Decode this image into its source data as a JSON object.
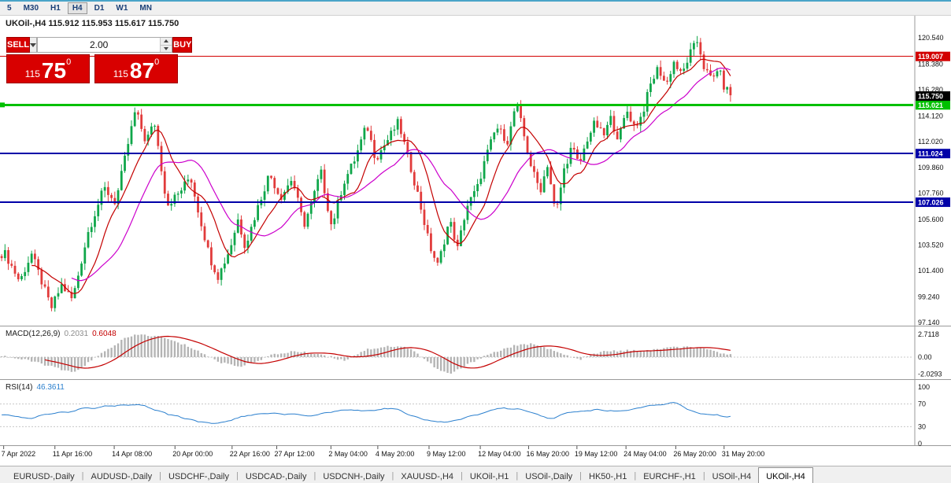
{
  "toolbar": {
    "items": [
      {
        "label": "5",
        "active": false
      },
      {
        "label": "M30",
        "active": false
      },
      {
        "label": "H1",
        "active": false
      },
      {
        "label": "H4",
        "active": true
      },
      {
        "label": "D1",
        "active": false
      },
      {
        "label": "W1",
        "active": false
      },
      {
        "label": "MN",
        "active": false
      }
    ]
  },
  "chart_header": {
    "text": "UKOil-,H4 115.912 115.953 115.617 115.750"
  },
  "trade_panel": {
    "sell_label": "SELL",
    "buy_label": "BUY",
    "volume": "2.00",
    "sell_price": {
      "small": "115",
      "big": "75",
      "sup": "0"
    },
    "buy_price": {
      "small": "115",
      "big": "87",
      "sup": "0"
    }
  },
  "chart_data": {
    "type": "candlestick",
    "symbol": "UKOil-",
    "timeframe": "H4",
    "current_bar": {
      "open": 115.912,
      "high": 115.953,
      "low": 115.617,
      "close": 115.75
    },
    "y_axis": {
      "range": [
        96.88,
        122.35
      ],
      "ticks": [
        {
          "v": 120.54,
          "label": "120.540"
        },
        {
          "v": 118.38,
          "label": "118.380"
        },
        {
          "v": 116.28,
          "label": "116.280"
        },
        {
          "v": 114.12,
          "label": "114.120"
        },
        {
          "v": 112.02,
          "label": "112.020"
        },
        {
          "v": 109.86,
          "label": "109.860"
        },
        {
          "v": 107.76,
          "label": "107.760"
        },
        {
          "v": 105.6,
          "label": "105.600"
        },
        {
          "v": 103.52,
          "label": "103.520"
        },
        {
          "v": 101.4,
          "label": "101.400"
        },
        {
          "v": 99.24,
          "label": "99.240"
        },
        {
          "v": 97.14,
          "label": "97.140"
        }
      ]
    },
    "price_levels": [
      {
        "v": 119.007,
        "label": "119.007",
        "color": "#d20000",
        "width": 1,
        "left_marker": false
      },
      {
        "v": 115.021,
        "label": "115.021",
        "color": "#00c000",
        "width": 3,
        "left_marker": true
      },
      {
        "v": 111.024,
        "label": "111.024",
        "color": "#0000a8",
        "width": 2,
        "left_marker": false
      },
      {
        "v": 107.026,
        "label": "107.026",
        "color": "#0000a8",
        "width": 2,
        "left_marker": false
      }
    ],
    "current_price_badge": {
      "v": 115.75,
      "label": "115.750",
      "color": "#000000"
    },
    "x_axis": {
      "labels": [
        {
          "t": 0.005,
          "label": "7 Apr 2022"
        },
        {
          "t": 0.075,
          "label": "11 Apr 16:00"
        },
        {
          "t": 0.156,
          "label": "14 Apr 08:00"
        },
        {
          "t": 0.239,
          "label": "20 Apr 00:00"
        },
        {
          "t": 0.317,
          "label": "22 Apr 16:00"
        },
        {
          "t": 0.378,
          "label": "27 Apr 12:00"
        },
        {
          "t": 0.452,
          "label": "2 May 04:00"
        },
        {
          "t": 0.516,
          "label": "4 May 20:00"
        },
        {
          "t": 0.586,
          "label": "9 May 12:00"
        },
        {
          "t": 0.656,
          "label": "12 May 04:00"
        },
        {
          "t": 0.722,
          "label": "16 May 20:00"
        },
        {
          "t": 0.788,
          "label": "19 May 12:00"
        },
        {
          "t": 0.855,
          "label": "24 May 04:00"
        },
        {
          "t": 0.923,
          "label": "26 May 20:00"
        },
        {
          "t": 0.989,
          "label": "31 May 20:00"
        }
      ]
    },
    "price_path": [
      [
        0.0,
        102.6
      ],
      [
        0.005,
        103.0
      ],
      [
        0.027,
        100.5
      ],
      [
        0.043,
        102.8
      ],
      [
        0.07,
        98.3
      ],
      [
        0.084,
        100.2
      ],
      [
        0.099,
        99.0
      ],
      [
        0.12,
        104.5
      ],
      [
        0.142,
        108.2
      ],
      [
        0.158,
        107.0
      ],
      [
        0.172,
        111.0
      ],
      [
        0.185,
        114.6
      ],
      [
        0.199,
        112.0
      ],
      [
        0.211,
        113.6
      ],
      [
        0.228,
        106.8
      ],
      [
        0.245,
        107.8
      ],
      [
        0.26,
        109.2
      ],
      [
        0.272,
        106.0
      ],
      [
        0.287,
        102.4
      ],
      [
        0.298,
        100.9
      ],
      [
        0.314,
        103.2
      ],
      [
        0.325,
        105.6
      ],
      [
        0.335,
        103.4
      ],
      [
        0.352,
        106.6
      ],
      [
        0.368,
        109.4
      ],
      [
        0.383,
        107.4
      ],
      [
        0.399,
        109.0
      ],
      [
        0.415,
        105.1
      ],
      [
        0.427,
        107.2
      ],
      [
        0.438,
        109.6
      ],
      [
        0.453,
        105.0
      ],
      [
        0.469,
        108.6
      ],
      [
        0.485,
        110.6
      ],
      [
        0.501,
        113.4
      ],
      [
        0.513,
        110.6
      ],
      [
        0.528,
        112.0
      ],
      [
        0.544,
        113.6
      ],
      [
        0.556,
        111.0
      ],
      [
        0.571,
        107.6
      ],
      [
        0.587,
        103.4
      ],
      [
        0.598,
        101.8
      ],
      [
        0.614,
        105.6
      ],
      [
        0.625,
        103.2
      ],
      [
        0.637,
        106.6
      ],
      [
        0.652,
        108.2
      ],
      [
        0.663,
        110.6
      ],
      [
        0.678,
        113.2
      ],
      [
        0.694,
        112.0
      ],
      [
        0.705,
        115.3
      ],
      [
        0.716,
        112.4
      ],
      [
        0.727,
        109.6
      ],
      [
        0.738,
        108.0
      ],
      [
        0.748,
        110.2
      ],
      [
        0.759,
        105.9
      ],
      [
        0.77,
        109.6
      ],
      [
        0.781,
        111.6
      ],
      [
        0.791,
        110.0
      ],
      [
        0.802,
        112.2
      ],
      [
        0.813,
        113.6
      ],
      [
        0.824,
        112.4
      ],
      [
        0.834,
        113.9
      ],
      [
        0.845,
        112.2
      ],
      [
        0.856,
        114.6
      ],
      [
        0.867,
        113.2
      ],
      [
        0.877,
        114.2
      ],
      [
        0.888,
        116.6
      ],
      [
        0.899,
        118.1
      ],
      [
        0.91,
        116.6
      ],
      [
        0.92,
        118.6
      ],
      [
        0.931,
        117.4
      ],
      [
        0.942,
        119.2
      ],
      [
        0.953,
        120.3
      ],
      [
        0.962,
        118.0
      ],
      [
        0.973,
        117.0
      ],
      [
        0.981,
        118.2
      ],
      [
        0.988,
        116.6
      ],
      [
        1.0,
        115.75
      ]
    ],
    "candles": {
      "count": 220,
      "volatility": 0.7,
      "wick": 0.55,
      "up_color": "#0fa64a",
      "down_color": "#e13b3b"
    },
    "moving_averages": [
      {
        "period": 10,
        "color": "#c40000"
      },
      {
        "period": 22,
        "color": "#cc00cc"
      }
    ],
    "macd": {
      "label": "MACD(12,26,9)",
      "value": "0.2031",
      "signal": "0.6048",
      "range": [
        -2.62,
        3.55
      ],
      "scale": [
        {
          "v": 2.7118,
          "label": "2.7118"
        },
        {
          "v": 0,
          "label": "0.00"
        },
        {
          "v": -2.0293,
          "label": "-2.0293"
        }
      ],
      "hist_color": "#b4b4b4",
      "line_color": "#c40000",
      "path": [
        [
          0.0,
          0.2
        ],
        [
          0.05,
          -0.6
        ],
        [
          0.1,
          -1.9
        ],
        [
          0.14,
          0.5
        ],
        [
          0.17,
          2.2
        ],
        [
          0.19,
          2.7
        ],
        [
          0.22,
          2.4
        ],
        [
          0.26,
          1.2
        ],
        [
          0.3,
          -0.6
        ],
        [
          0.33,
          -1.1
        ],
        [
          0.37,
          0.2
        ],
        [
          0.4,
          0.7
        ],
        [
          0.44,
          0.3
        ],
        [
          0.47,
          -0.4
        ],
        [
          0.5,
          0.9
        ],
        [
          0.53,
          1.3
        ],
        [
          0.56,
          1.1
        ],
        [
          0.6,
          -1.6
        ],
        [
          0.615,
          -2.0
        ],
        [
          0.66,
          0.1
        ],
        [
          0.7,
          1.3
        ],
        [
          0.73,
          1.6
        ],
        [
          0.76,
          0.6
        ],
        [
          0.79,
          -0.3
        ],
        [
          0.82,
          0.6
        ],
        [
          0.85,
          0.8
        ],
        [
          0.88,
          0.7
        ],
        [
          0.91,
          1.1
        ],
        [
          0.94,
          1.2
        ],
        [
          0.97,
          0.8
        ],
        [
          1.0,
          0.2
        ]
      ]
    },
    "rsi": {
      "label": "RSI(14)",
      "value": "46.3611",
      "color": "#2a7fce",
      "range": [
        0,
        111
      ],
      "scale": [
        {
          "v": 100,
          "label": "100"
        },
        {
          "v": 70,
          "label": "70"
        },
        {
          "v": 30,
          "label": "30"
        },
        {
          "v": 0,
          "label": "0"
        }
      ],
      "dashed_levels": [
        70,
        30
      ],
      "path": [
        [
          0.0,
          52
        ],
        [
          0.04,
          45
        ],
        [
          0.08,
          55
        ],
        [
          0.12,
          62
        ],
        [
          0.16,
          68
        ],
        [
          0.19,
          70
        ],
        [
          0.23,
          52
        ],
        [
          0.27,
          40
        ],
        [
          0.3,
          36
        ],
        [
          0.34,
          50
        ],
        [
          0.38,
          55
        ],
        [
          0.42,
          48
        ],
        [
          0.46,
          58
        ],
        [
          0.5,
          60
        ],
        [
          0.54,
          62
        ],
        [
          0.58,
          42
        ],
        [
          0.61,
          36
        ],
        [
          0.65,
          52
        ],
        [
          0.69,
          63
        ],
        [
          0.72,
          58
        ],
        [
          0.75,
          44
        ],
        [
          0.78,
          55
        ],
        [
          0.81,
          60
        ],
        [
          0.84,
          56
        ],
        [
          0.87,
          62
        ],
        [
          0.9,
          68
        ],
        [
          0.92,
          73
        ],
        [
          0.95,
          55
        ],
        [
          0.97,
          50
        ],
        [
          1.0,
          46.4
        ]
      ]
    }
  },
  "tabs": {
    "separator": "|",
    "active": "UKOil-,H4",
    "items": [
      "EURUSD-,Daily",
      "AUDUSD-,Daily",
      "USDCHF-,Daily",
      "USDCAD-,Daily",
      "USDCNH-,Daily",
      "XAUUSD-,H4",
      "UKOil-,H1",
      "USOil-,Daily",
      "HK50-,H1",
      "EURCHF-,H1",
      "USOil-,H4",
      "UKOil-,H4"
    ]
  }
}
